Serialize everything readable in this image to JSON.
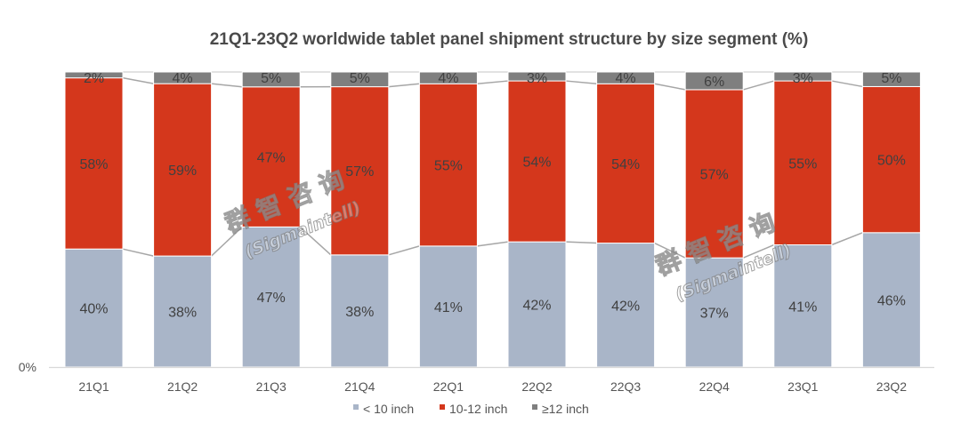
{
  "chart_data": {
    "type": "bar",
    "stacked": true,
    "normalized": true,
    "title": "21Q1-23Q2 worldwide tablet panel shipment structure by size segment (%)",
    "xlabel": "",
    "ylabel": "",
    "ylim": [
      0,
      100
    ],
    "y_tick_labels": [
      "0%"
    ],
    "categories": [
      "21Q1",
      "21Q2",
      "21Q3",
      "21Q4",
      "22Q1",
      "22Q2",
      "22Q3",
      "22Q4",
      "23Q1",
      "23Q2"
    ],
    "series": [
      {
        "name": "< 10 inch",
        "color": "#a9b5c8",
        "values": [
          40,
          38,
          47,
          38,
          41,
          42,
          42,
          37,
          41,
          46
        ]
      },
      {
        "name": "10-12 inch",
        "color": "#d4371c",
        "values": [
          58,
          59,
          47,
          57,
          55,
          54,
          54,
          57,
          55,
          50
        ]
      },
      {
        "name": "≥12 inch",
        "color": "#7f7f7f",
        "values": [
          2,
          4,
          5,
          5,
          4,
          3,
          4,
          6,
          3,
          5
        ]
      }
    ],
    "data_label_suffix": "%",
    "series_lines": true,
    "legend_position": "bottom",
    "grid": false
  },
  "watermarks": [
    {
      "cn": "群 智 咨 询",
      "en": "(Sigmaintell)"
    },
    {
      "cn": "群 智 咨 询",
      "en": "(Sigmaintell)"
    }
  ]
}
